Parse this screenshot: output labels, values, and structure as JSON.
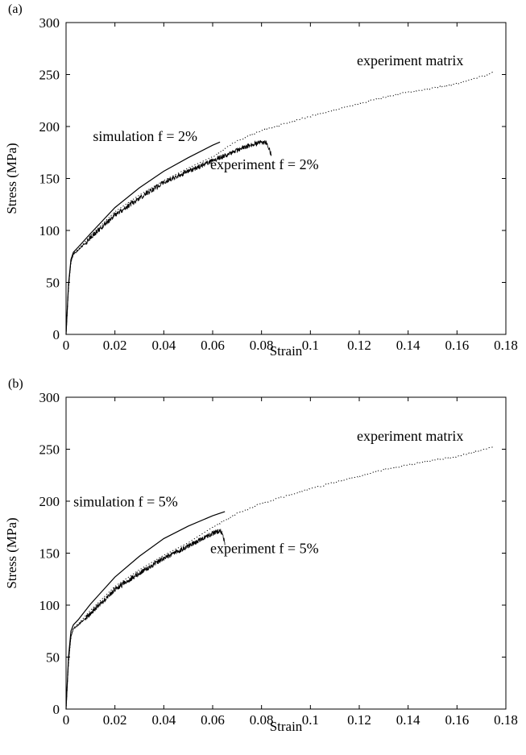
{
  "chart_data": [
    {
      "panel_label": "(a)",
      "type": "line",
      "xlabel": "Strain",
      "ylabel": "Stress (MPa)",
      "xlim": [
        0,
        0.18
      ],
      "ylim": [
        0,
        300
      ],
      "xticks": [
        0,
        0.02,
        0.04,
        0.06,
        0.08,
        0.1,
        0.12,
        0.14,
        0.16,
        0.18
      ],
      "xtick_labels": [
        "0",
        "0.02",
        "0.04",
        "0.06",
        "0.08",
        "0.1",
        "0.12",
        "0.14",
        "0.16",
        "0.18"
      ],
      "yticks": [
        0,
        50,
        100,
        150,
        200,
        250,
        300
      ],
      "ytick_labels": [
        "0",
        "50",
        "100",
        "150",
        "200",
        "250",
        "300"
      ],
      "grid": false,
      "series": [
        {
          "name": "experiment matrix",
          "style": "dotted",
          "x": [
            0,
            0.001,
            0.002,
            0.003,
            0.005,
            0.01,
            0.02,
            0.03,
            0.04,
            0.05,
            0.06,
            0.07,
            0.08,
            0.09,
            0.1,
            0.11,
            0.12,
            0.13,
            0.14,
            0.15,
            0.16,
            0.17,
            0.175
          ],
          "y": [
            0,
            45,
            70,
            78,
            82,
            95,
            118,
            134,
            148,
            160,
            171,
            186,
            196,
            203,
            210,
            216,
            222,
            228,
            233,
            237,
            241,
            248,
            252
          ]
        },
        {
          "name": "simulation f = 2%",
          "style": "solid",
          "x": [
            0,
            0.001,
            0.002,
            0.003,
            0.005,
            0.01,
            0.02,
            0.03,
            0.04,
            0.05,
            0.06,
            0.063
          ],
          "y": [
            0,
            48,
            72,
            79,
            84,
            97,
            122,
            141,
            157,
            170,
            182,
            185
          ]
        },
        {
          "name": "experiment f = 2%",
          "style": "noisy",
          "x": [
            0,
            0.001,
            0.002,
            0.003,
            0.005,
            0.01,
            0.02,
            0.03,
            0.04,
            0.05,
            0.06,
            0.07,
            0.075,
            0.08,
            0.082,
            0.083,
            0.084
          ],
          "y": [
            0,
            45,
            70,
            77,
            81,
            93,
            115,
            131,
            146,
            157,
            167,
            177,
            182,
            185,
            184,
            180,
            172
          ]
        }
      ],
      "annotations": [
        {
          "text": "experiment matrix",
          "x": 0.119,
          "y": 259
        },
        {
          "text": "simulation f = 2%",
          "x": 0.011,
          "y": 186
        },
        {
          "text": "experiment f = 2%",
          "x": 0.059,
          "y": 159
        }
      ]
    },
    {
      "panel_label": "(b)",
      "type": "line",
      "xlabel": "Strain",
      "ylabel": "Stress (MPa)",
      "xlim": [
        0,
        0.18
      ],
      "ylim": [
        0,
        300
      ],
      "xticks": [
        0,
        0.02,
        0.04,
        0.06,
        0.08,
        0.1,
        0.12,
        0.14,
        0.16,
        0.18
      ],
      "xtick_labels": [
        "0",
        "0.02",
        "0.04",
        "0.06",
        "0.08",
        "0.1",
        "0.12",
        "0.14",
        "0.16",
        "0.18"
      ],
      "yticks": [
        0,
        50,
        100,
        150,
        200,
        250,
        300
      ],
      "ytick_labels": [
        "0",
        "50",
        "100",
        "150",
        "200",
        "250",
        "300"
      ],
      "grid": false,
      "series": [
        {
          "name": "experiment matrix",
          "style": "dotted",
          "x": [
            0,
            0.001,
            0.002,
            0.003,
            0.005,
            0.01,
            0.02,
            0.03,
            0.04,
            0.05,
            0.06,
            0.07,
            0.08,
            0.09,
            0.1,
            0.11,
            0.12,
            0.13,
            0.14,
            0.15,
            0.16,
            0.17,
            0.175
          ],
          "y": [
            0,
            45,
            70,
            78,
            82,
            95,
            118,
            134,
            148,
            160,
            175,
            188,
            198,
            205,
            212,
            218,
            224,
            230,
            235,
            239,
            243,
            249,
            252
          ]
        },
        {
          "name": "simulation f = 5%",
          "style": "solid",
          "x": [
            0,
            0.001,
            0.002,
            0.003,
            0.005,
            0.01,
            0.02,
            0.03,
            0.04,
            0.05,
            0.06,
            0.065
          ],
          "y": [
            0,
            50,
            75,
            81,
            86,
            101,
            127,
            147,
            164,
            176,
            186,
            190
          ]
        },
        {
          "name": "experiment f = 5%",
          "style": "noisy",
          "x": [
            0,
            0.001,
            0.002,
            0.003,
            0.005,
            0.01,
            0.02,
            0.03,
            0.04,
            0.05,
            0.055,
            0.06,
            0.063,
            0.064,
            0.065
          ],
          "y": [
            0,
            45,
            70,
            77,
            81,
            92,
            115,
            131,
            145,
            157,
            163,
            169,
            172,
            168,
            160
          ]
        }
      ],
      "annotations": [
        {
          "text": "experiment matrix",
          "x": 0.119,
          "y": 258
        },
        {
          "text": "simulation f = 5%",
          "x": 0.003,
          "y": 195
        },
        {
          "text": "experiment f = 5%",
          "x": 0.059,
          "y": 150
        }
      ]
    }
  ]
}
